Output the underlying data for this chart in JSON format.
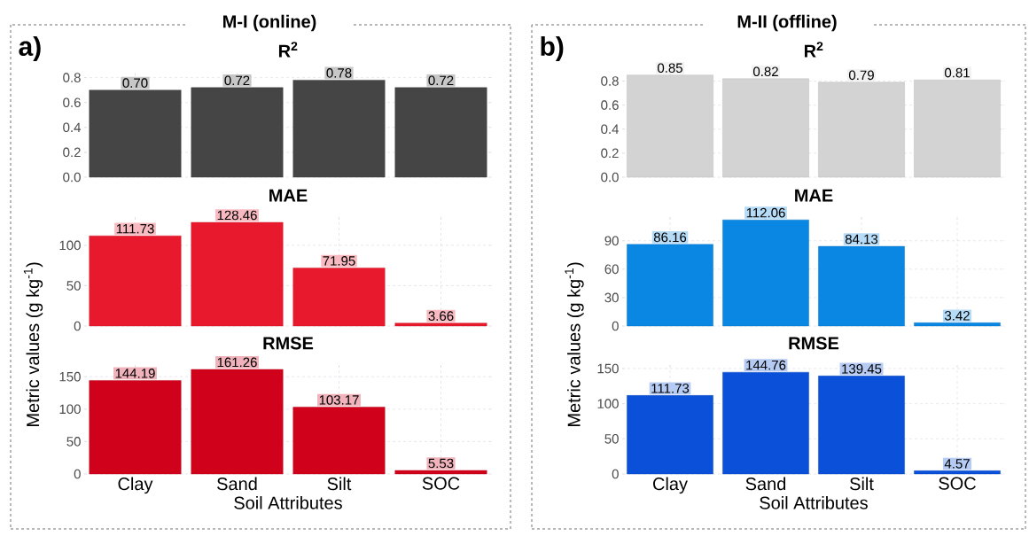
{
  "chart_data": [
    {
      "type": "bar",
      "title": "R$^{2}$",
      "categories": [
        null,
        null,
        null,
        null
      ],
      "values": [
        0.7,
        0.72,
        0.78,
        0.72
      ],
      "value_labels": [
        "0.70",
        "0.72",
        "0.78",
        "0.72"
      ],
      "color": "#454545",
      "ylim": [
        0,
        0.84
      ],
      "yticks": [
        {
          "value": 0,
          "label": "0.0"
        },
        0.2,
        0.4,
        0.6,
        0.8
      ],
      "grid": true,
      "tick_labels": "y",
      "annotations": [
        "M-I (online)",
        "a)"
      ]
    },
    {
      "type": "bar",
      "title": "MAE",
      "ylabel": "Metric values (g kg$^{-1}$)",
      "categories": [
        null,
        null,
        null,
        null
      ],
      "values": [
        111.73,
        128.46,
        71.95,
        3.66
      ],
      "value_labels": [
        "111.73",
        "128.46",
        "71.95",
        "3.66"
      ],
      "color": "#e8192c",
      "ylim": [
        0,
        135
      ],
      "yticks": [
        0,
        50,
        100
      ],
      "grid": true,
      "tick_labels": "y"
    },
    {
      "type": "bar",
      "title": "RMSE",
      "xlabel": "Soil Attributes",
      "categories": [
        "Clay",
        "Sand",
        "Silt",
        "SOC"
      ],
      "values": [
        144.19,
        161.26,
        103.17,
        5.53
      ],
      "value_labels": [
        "144.19",
        "161.26",
        "103.17",
        "5.53"
      ],
      "color": "#d0021b",
      "ylim": [
        0,
        168
      ],
      "yticks": [
        0,
        50,
        100,
        150
      ],
      "grid": true
    },
    {
      "type": "bar",
      "title": "R$^{2}$",
      "categories": [
        null,
        null,
        null,
        null
      ],
      "values": [
        0.85,
        0.82,
        0.79,
        0.81
      ],
      "value_labels": [
        "0.85",
        "0.82",
        "0.79",
        "0.81"
      ],
      "color": "#d3d3d3",
      "ylim": [
        0,
        0.87
      ],
      "yticks": [
        {
          "value": 0,
          "label": "0.0"
        },
        0.2,
        0.4,
        0.6,
        0.8
      ],
      "grid": true,
      "tick_labels": "y",
      "annotations": [
        "M-II (offline)",
        "b)"
      ]
    },
    {
      "type": "bar",
      "title": "MAE",
      "ylabel": "Metric values (g kg$^{-1}$)",
      "categories": [
        null,
        null,
        null,
        null
      ],
      "values": [
        86.16,
        112.06,
        84.13,
        3.42
      ],
      "value_labels": [
        "86.16",
        "112.06",
        "84.13",
        "3.42"
      ],
      "color": "#0a86e3",
      "ylim": [
        0,
        115
      ],
      "yticks": [
        0,
        30,
        60,
        90
      ],
      "grid": true,
      "tick_labels": "y"
    },
    {
      "type": "bar",
      "title": "RMSE",
      "xlabel": "Soil Attributes",
      "categories": [
        "Clay",
        "Sand",
        "Silt",
        "SOC"
      ],
      "values": [
        111.73,
        144.76,
        139.45,
        4.57
      ],
      "value_labels": [
        "111.73",
        "144.76",
        "139.45",
        "4.57"
      ],
      "color": "#0a50d8",
      "ylim": [
        0,
        155
      ],
      "yticks": [
        0,
        50,
        100,
        150
      ],
      "grid": true
    }
  ]
}
